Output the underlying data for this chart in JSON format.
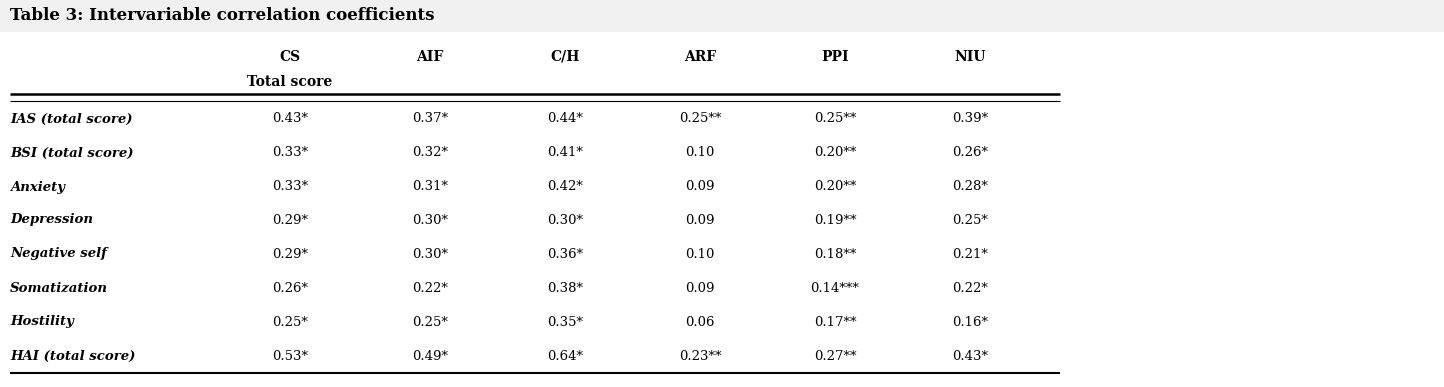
{
  "title": "Table 3: Intervariable correlation coefficients",
  "col_headers_line1": [
    "CS",
    "AIF",
    "C/H",
    "ARF",
    "PPI",
    "NIU"
  ],
  "col_headers_line2": [
    "Total score",
    "",
    "",
    "",
    "",
    ""
  ],
  "row_headers": [
    "IAS (total score)",
    "BSI (total score)",
    "Anxiety",
    "Depression",
    "Negative self",
    "Somatization",
    "Hostility",
    "HAI (total score)"
  ],
  "cell_data": [
    [
      "0.43*",
      "0.37*",
      "0.44*",
      "0.25**",
      "0.25**",
      "0.39*"
    ],
    [
      "0.33*",
      "0.32*",
      "0.41*",
      "0.10",
      "0.20**",
      "0.26*"
    ],
    [
      "0.33*",
      "0.31*",
      "0.42*",
      "0.09",
      "0.20**",
      "0.28*"
    ],
    [
      "0.29*",
      "0.30*",
      "0.30*",
      "0.09",
      "0.19**",
      "0.25*"
    ],
    [
      "0.29*",
      "0.30*",
      "0.36*",
      "0.10",
      "0.18**",
      "0.21*"
    ],
    [
      "0.26*",
      "0.22*",
      "0.38*",
      "0.09",
      "0.14***",
      "0.22*"
    ],
    [
      "0.25*",
      "0.25*",
      "0.35*",
      "0.06",
      "0.17**",
      "0.16*"
    ],
    [
      "0.53*",
      "0.49*",
      "0.64*",
      "0.23**",
      "0.27**",
      "0.43*"
    ]
  ],
  "bg_color": "#f0f0f0",
  "table_bg_color": "#ffffff",
  "text_color": "#000000",
  "title_fontsize": 12,
  "header_fontsize": 10,
  "cell_fontsize": 9.5,
  "row_header_fontsize": 9.5
}
